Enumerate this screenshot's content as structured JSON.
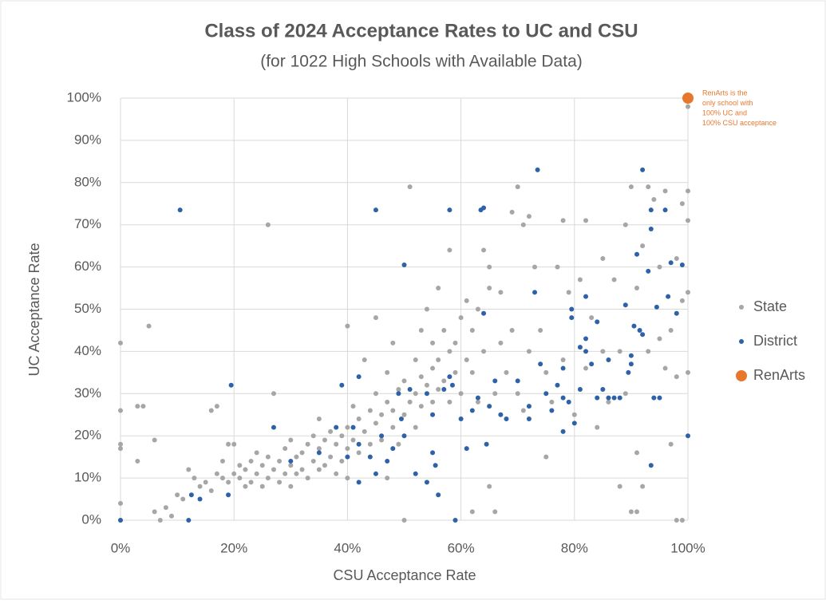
{
  "chart_data": {
    "type": "scatter",
    "title": "Class of 2024 Acceptance Rates to UC and CSU",
    "subtitle": "(for 1022 High Schools with Available Data)",
    "x_label": "CSU Acceptance Rate",
    "y_label": "UC Acceptance Rate",
    "annotation": [
      "RenArts is the",
      "only school with",
      "100% UC and",
      "100% CSU acceptance"
    ],
    "xlim": [
      0,
      100
    ],
    "ylim": [
      0,
      100
    ],
    "xticks": [
      {
        "value": 0,
        "label": "0%"
      },
      {
        "value": 20,
        "label": "20%"
      },
      {
        "value": 40,
        "label": "40%"
      },
      {
        "value": 60,
        "label": "60%"
      },
      {
        "value": 80,
        "label": "80%"
      },
      {
        "value": 100,
        "label": "100%"
      }
    ],
    "yticks": [
      {
        "value": 0,
        "label": "0%"
      },
      {
        "value": 10,
        "label": "10%"
      },
      {
        "value": 20,
        "label": "20%"
      },
      {
        "value": 30,
        "label": "30%"
      },
      {
        "value": 40,
        "label": "40%"
      },
      {
        "value": 50,
        "label": "50%"
      },
      {
        "value": 60,
        "label": "60%"
      },
      {
        "value": 70,
        "label": "70%"
      },
      {
        "value": 80,
        "label": "80%"
      },
      {
        "value": 90,
        "label": "90%"
      },
      {
        "value": 100,
        "label": "100%"
      }
    ],
    "grid": true,
    "legend": "right",
    "series": [
      {
        "name": "State",
        "color": "#a6a6a6",
        "x": [
          0,
          0,
          0,
          0,
          0,
          0,
          3,
          3,
          4,
          5,
          6,
          6,
          7,
          8,
          9,
          10,
          11,
          12,
          13,
          14,
          15,
          16,
          16,
          17,
          17,
          18,
          18,
          19,
          19,
          20,
          20,
          21,
          21,
          22,
          22,
          23,
          23,
          24,
          24,
          25,
          25,
          26,
          26,
          26,
          27,
          27,
          28,
          28,
          29,
          29,
          30,
          30,
          30,
          31,
          31,
          32,
          32,
          33,
          33,
          34,
          34,
          35,
          35,
          35,
          36,
          36,
          37,
          37,
          38,
          38,
          39,
          39,
          40,
          40,
          40,
          40,
          41,
          41,
          42,
          42,
          43,
          43,
          44,
          44,
          45,
          45,
          45,
          46,
          46,
          47,
          47,
          47,
          48,
          48,
          48,
          49,
          49,
          50,
          50,
          50,
          51,
          51,
          52,
          52,
          52,
          53,
          53,
          53,
          54,
          54,
          55,
          55,
          55,
          56,
          56,
          56,
          57,
          57,
          58,
          58,
          58,
          59,
          59,
          60,
          60,
          61,
          61,
          62,
          62,
          62,
          63,
          63,
          64,
          64,
          65,
          65,
          65,
          66,
          66,
          67,
          67,
          68,
          69,
          69,
          70,
          70,
          71,
          71,
          72,
          72,
          73,
          74,
          75,
          75,
          76,
          77,
          78,
          78,
          79,
          80,
          81,
          82,
          82,
          83,
          84,
          85,
          85,
          86,
          87,
          88,
          88,
          89,
          89,
          90,
          90,
          91,
          91,
          91,
          92,
          92,
          93,
          93,
          94,
          95,
          95,
          96,
          96,
          97,
          97,
          98,
          98,
          98,
          99,
          99,
          99,
          100,
          100,
          100,
          100,
          100
        ],
        "values": [
          42,
          26,
          18,
          17,
          4,
          0,
          27,
          14,
          27,
          46,
          19,
          2,
          0,
          3,
          1,
          6,
          5,
          12,
          10,
          8,
          9,
          7,
          26,
          27,
          11,
          10,
          14,
          18,
          9,
          11,
          18,
          10,
          13,
          12,
          8,
          14,
          9,
          16,
          11,
          13,
          8,
          70,
          15,
          10,
          12,
          30,
          14,
          9,
          17,
          11,
          13,
          19,
          8,
          15,
          11,
          16,
          12,
          18,
          10,
          14,
          20,
          17,
          12,
          24,
          19,
          13,
          21,
          15,
          18,
          11,
          20,
          14,
          22,
          17,
          46,
          10,
          19,
          27,
          24,
          16,
          21,
          38,
          26,
          18,
          23,
          48,
          30,
          25,
          19,
          28,
          35,
          10,
          22,
          26,
          42,
          31,
          18,
          25,
          33,
          0,
          28,
          79,
          30,
          38,
          22,
          34,
          45,
          27,
          32,
          50,
          36,
          28,
          42,
          38,
          55,
          31,
          45,
          33,
          40,
          64,
          28,
          42,
          35,
          48,
          30,
          38,
          52,
          45,
          35,
          2,
          50,
          28,
          64,
          40,
          8,
          55,
          60,
          30,
          2,
          54,
          42,
          35,
          73,
          45,
          79,
          30,
          70,
          26,
          72,
          40,
          60,
          45,
          15,
          35,
          28,
          60,
          71,
          38,
          54,
          25,
          57,
          36,
          71,
          48,
          22,
          62,
          40,
          28,
          57,
          8,
          40,
          70,
          30,
          2,
          79,
          2,
          16,
          55,
          8,
          65,
          79,
          40,
          76,
          60,
          43,
          36,
          78,
          18,
          45,
          34,
          62,
          0,
          75,
          52,
          0,
          78,
          71,
          54,
          35,
          98
        ]
      },
      {
        "name": "District",
        "color": "#2e62a8",
        "x": [
          0,
          10.5,
          19.5,
          19,
          12,
          12.5,
          14,
          27,
          30,
          35,
          38,
          39,
          40,
          41,
          42,
          42,
          42,
          44,
          45,
          45,
          46,
          47,
          48,
          49,
          49.5,
          50,
          50,
          51,
          52,
          54,
          54,
          55,
          55,
          55.5,
          56,
          57,
          58,
          58,
          58.5,
          59,
          60,
          61,
          62,
          63,
          63.5,
          64,
          64,
          64.5,
          65,
          66,
          67,
          68,
          70,
          72,
          72,
          73,
          73.5,
          74,
          75,
          76,
          77,
          78,
          78,
          78,
          79,
          79.5,
          79.5,
          80,
          81,
          81,
          82,
          82,
          82,
          83,
          84,
          84,
          85,
          86,
          86,
          87,
          88,
          89,
          89.5,
          90,
          90,
          90.5,
          91,
          91.5,
          92,
          92,
          93,
          93.5,
          93.5,
          93.5,
          94,
          94.5,
          95,
          96,
          96.5,
          97,
          98,
          99,
          100
        ],
        "values": [
          0,
          73.5,
          32,
          6,
          0,
          6,
          5,
          22,
          14,
          16,
          22,
          32,
          15,
          22,
          34,
          18,
          9,
          15,
          73.5,
          11,
          20,
          14,
          17,
          30,
          24,
          60.5,
          20,
          31,
          11,
          30,
          9,
          16,
          25,
          13,
          6,
          31,
          73.5,
          34,
          32,
          0,
          24,
          17,
          26,
          29,
          73.5,
          74,
          49,
          18,
          27,
          33,
          25,
          24,
          33,
          27,
          24,
          54,
          83,
          37,
          30,
          26,
          32,
          36,
          21,
          29,
          28,
          48,
          50,
          23,
          41,
          31,
          40,
          43,
          53,
          37,
          29,
          47,
          31,
          29,
          38,
          29,
          29,
          51,
          35,
          37,
          39,
          46,
          63,
          45,
          83,
          44,
          59,
          73.5,
          69,
          13,
          29,
          50.5,
          29,
          73.5,
          53,
          61,
          49,
          60.5,
          20
        ]
      },
      {
        "name": "RenArts",
        "color": "#e8772e",
        "x": [
          100
        ],
        "values": [
          100
        ]
      }
    ]
  }
}
